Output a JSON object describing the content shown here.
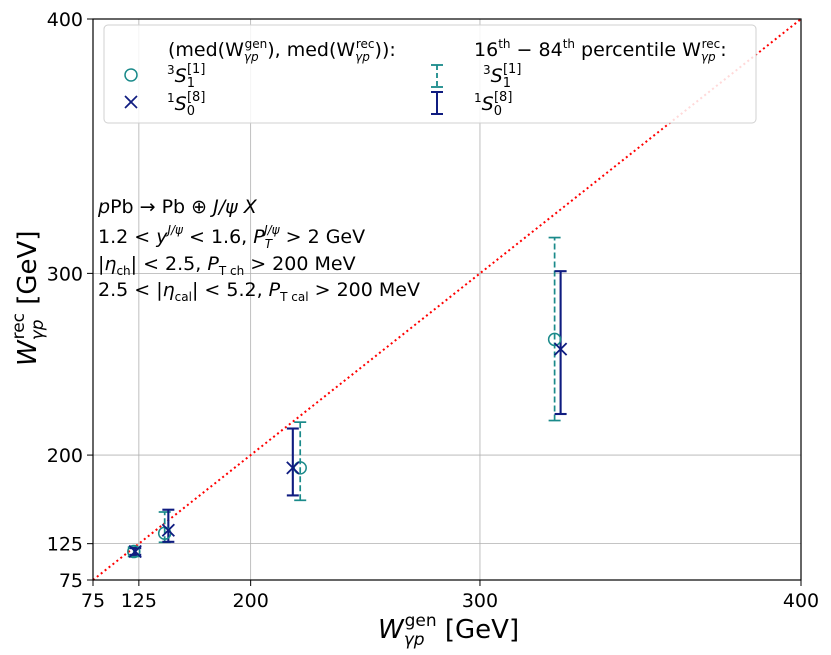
{
  "chart_data": {
    "type": "scatter",
    "xlim": [
      75,
      400
    ],
    "ylim": [
      75,
      400
    ],
    "xticks": [
      "75",
      "125",
      "200",
      "300",
      "400"
    ],
    "yticks": [
      "75",
      "125",
      "200",
      "300",
      "400"
    ],
    "xlabel": {
      "main": "W",
      "sub": "γp",
      "sup": "gen",
      "unit": " [GeV]"
    },
    "ylabel": {
      "main": "W",
      "sub": "γp",
      "sup": "rec",
      "unit": " [GeV]"
    },
    "grid": true,
    "diagonal": {
      "from": [
        75,
        75
      ],
      "to": [
        400,
        400
      ],
      "color": "#ff0000",
      "style": "dotted"
    },
    "series": [
      {
        "name": "3S1[1]",
        "marker": "circle",
        "color": "#1a8a8a",
        "errstyle": "dashed",
        "x": [
          120.5,
          145.8,
          225.4,
          326.0
        ],
        "y": [
          116.0,
          136.0,
          191.0,
          268.0
        ],
        "ylo": [
          110.0,
          126.5,
          166.0,
          222.5
        ],
        "yhi": [
          121.0,
          156.0,
          221.5,
          316.0
        ]
      },
      {
        "name": "1S0[8]",
        "marker": "x",
        "color": "#0f1c80",
        "errstyle": "solid",
        "x": [
          121.8,
          148.5,
          221.8,
          328.0
        ],
        "y": [
          116.0,
          139.0,
          191.0,
          263.0
        ],
        "ylo": [
          112.0,
          127.0,
          170.0,
          226.5
        ],
        "yhi": [
          120.0,
          158.0,
          217.5,
          301.0
        ]
      }
    ],
    "legend": {
      "placement": "top",
      "left_title": "(med(W",
      "left_title_2": "), med(W",
      "left_title_3": ")):",
      "right_title_a": "16",
      "right_title_b": "th",
      "right_title_c": " − 84",
      "right_title_d": "th",
      "right_title_e": " percentile W",
      "right_title_f": ":",
      "sub": "γp",
      "sup_gen": "gen",
      "sup_rec": "rec",
      "entry1": {
        "pre": "3",
        "main": "S",
        "sub": "1",
        "sup": "[1]"
      },
      "entry2": {
        "pre": "1",
        "main": "S",
        "sub": "0",
        "sup": "[8]"
      }
    },
    "annotations": {
      "line1": {
        "a": "p",
        "b": "Pb → Pb ⊕ ",
        "c": "J/ψ X"
      },
      "line2": {
        "a": "1.2 < ",
        "b": "y",
        "bsup": "J/ψ",
        "c": " < 1.6, ",
        "d": "P",
        "dsub": "T",
        "dsup": "J/ψ",
        "e": " > 2 GeV"
      },
      "line3": {
        "a": "|",
        "b": "η",
        "bsub": "ch",
        "c": "| < 2.5, ",
        "d": "P",
        "dsub": "T ch",
        "e": " > 200 MeV"
      },
      "line4": {
        "a": "2.5 < |",
        "b": "η",
        "bsub": "cal",
        "c": "| < 5.2, ",
        "d": "P",
        "dsub": "T cal",
        "e": " > 200 MeV"
      }
    }
  }
}
